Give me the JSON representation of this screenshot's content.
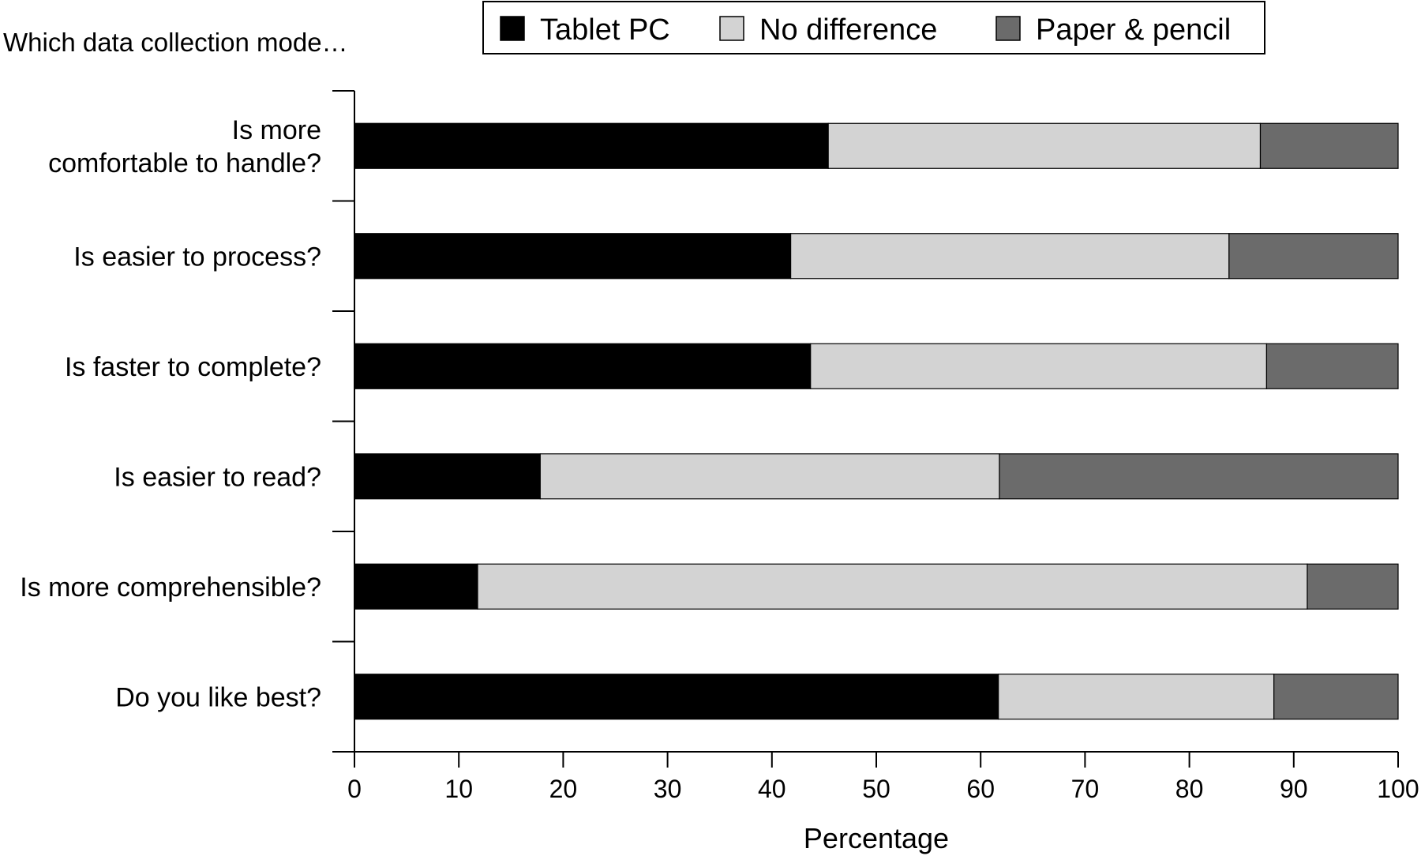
{
  "chart_data": {
    "type": "bar",
    "orientation": "horizontal",
    "stacked": true,
    "lead_text": "Which data collection mode…",
    "categories": [
      [
        "Is more",
        "comfortable to handle?"
      ],
      [
        "Is easier to process?"
      ],
      [
        "Is faster to complete?"
      ],
      [
        "Is easier to read?"
      ],
      [
        "Is more comprehensible?"
      ],
      [
        "Do you like best?"
      ]
    ],
    "series": [
      {
        "name": "Tablet PC",
        "color": "#000000",
        "values": [
          45.4,
          41.8,
          43.7,
          17.8,
          11.8,
          61.7
        ]
      },
      {
        "name": "No difference",
        "color": "#d3d3d3",
        "values": [
          41.4,
          42.0,
          43.7,
          44.0,
          79.5,
          26.4
        ]
      },
      {
        "name": "Paper & pencil",
        "color": "#6b6b6b",
        "values": [
          13.2,
          16.2,
          12.6,
          38.2,
          8.7,
          11.9
        ]
      }
    ],
    "xlabel": "Percentage",
    "xlim": [
      0,
      100
    ],
    "xticks": [
      0,
      10,
      20,
      30,
      40,
      50,
      60,
      70,
      80,
      90,
      100
    ],
    "legend_position": "top",
    "grid": false
  }
}
